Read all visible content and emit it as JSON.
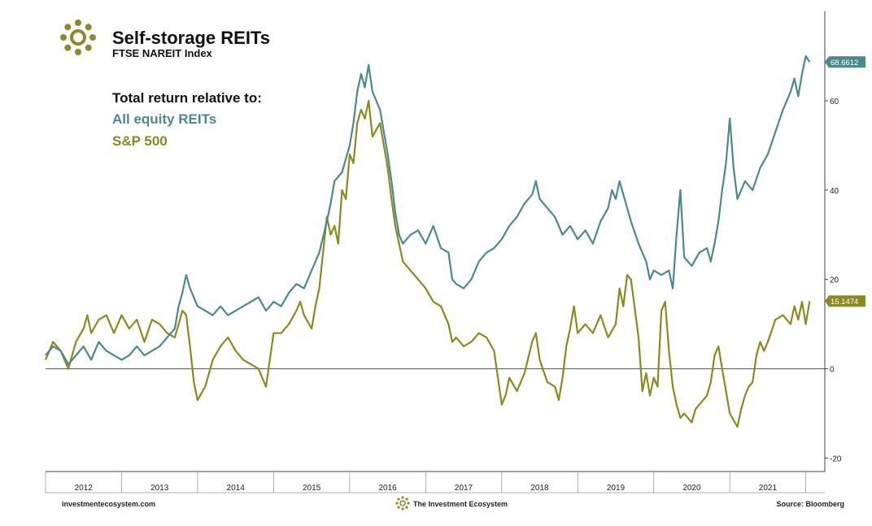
{
  "header": {
    "title": "Self-storage REITs",
    "subtitle": "FTSE NAREIT Index"
  },
  "legend": {
    "heading": "Total return relative to:",
    "items": [
      {
        "label": "All equity REITs",
        "color": "#4a8a8c"
      },
      {
        "label": "S&P 500",
        "color": "#8a8a1e"
      }
    ]
  },
  "footer": {
    "left": "investmentecosystem.com",
    "center": "The Investment Ecosystem",
    "right": "Source: Bloomberg"
  },
  "chart_data": {
    "type": "line",
    "x_tick_labels": [
      "2012",
      "2013",
      "2014",
      "2015",
      "2016",
      "2017",
      "2018",
      "2019",
      "2020",
      "2021"
    ],
    "xlim": [
      2011.5,
      2021.75
    ],
    "ylim": [
      -23,
      80
    ],
    "y_ticks": [
      60,
      40,
      20,
      0,
      -20
    ],
    "y_tick_labels": [
      "60",
      "40",
      "20",
      "0",
      "-20"
    ],
    "grid": false,
    "axis_side": "right",
    "zero_line": true,
    "series": [
      {
        "name": "All equity REITs",
        "color": "#4a8a8c",
        "last_value_label": "68.6612",
        "points": [
          [
            2011.5,
            3
          ],
          [
            2011.6,
            5
          ],
          [
            2011.7,
            4
          ],
          [
            2011.8,
            1
          ],
          [
            2011.9,
            3
          ],
          [
            2012.0,
            5
          ],
          [
            2012.1,
            2
          ],
          [
            2012.2,
            6
          ],
          [
            2012.3,
            4
          ],
          [
            2012.4,
            3
          ],
          [
            2012.5,
            2
          ],
          [
            2012.6,
            3
          ],
          [
            2012.7,
            5
          ],
          [
            2012.8,
            3
          ],
          [
            2012.9,
            4
          ],
          [
            2013.0,
            5
          ],
          [
            2013.1,
            7
          ],
          [
            2013.2,
            9
          ],
          [
            2013.25,
            14
          ],
          [
            2013.3,
            17
          ],
          [
            2013.35,
            21
          ],
          [
            2013.4,
            18
          ],
          [
            2013.5,
            14
          ],
          [
            2013.6,
            13
          ],
          [
            2013.7,
            12
          ],
          [
            2013.8,
            14
          ],
          [
            2013.9,
            12
          ],
          [
            2014.0,
            13
          ],
          [
            2014.1,
            14
          ],
          [
            2014.2,
            15
          ],
          [
            2014.3,
            16
          ],
          [
            2014.4,
            13
          ],
          [
            2014.5,
            15
          ],
          [
            2014.6,
            14
          ],
          [
            2014.7,
            17
          ],
          [
            2014.8,
            19
          ],
          [
            2014.9,
            18
          ],
          [
            2015.0,
            22
          ],
          [
            2015.1,
            26
          ],
          [
            2015.2,
            33
          ],
          [
            2015.25,
            37
          ],
          [
            2015.3,
            42
          ],
          [
            2015.4,
            44
          ],
          [
            2015.5,
            50
          ],
          [
            2015.55,
            55
          ],
          [
            2015.6,
            62
          ],
          [
            2015.65,
            66
          ],
          [
            2015.7,
            63
          ],
          [
            2015.75,
            68
          ],
          [
            2015.8,
            62
          ],
          [
            2015.9,
            58
          ],
          [
            2016.0,
            48
          ],
          [
            2016.05,
            42
          ],
          [
            2016.1,
            35
          ],
          [
            2016.15,
            30
          ],
          [
            2016.2,
            28
          ],
          [
            2016.3,
            30
          ],
          [
            2016.4,
            31
          ],
          [
            2016.5,
            28
          ],
          [
            2016.6,
            32
          ],
          [
            2016.7,
            27
          ],
          [
            2016.8,
            26
          ],
          [
            2016.85,
            20
          ],
          [
            2016.9,
            19
          ],
          [
            2017.0,
            18
          ],
          [
            2017.1,
            20
          ],
          [
            2017.2,
            24
          ],
          [
            2017.3,
            26
          ],
          [
            2017.4,
            27
          ],
          [
            2017.5,
            29
          ],
          [
            2017.6,
            32
          ],
          [
            2017.7,
            34
          ],
          [
            2017.8,
            37
          ],
          [
            2017.9,
            39
          ],
          [
            2017.95,
            42
          ],
          [
            2018.0,
            38
          ],
          [
            2018.1,
            36
          ],
          [
            2018.2,
            34
          ],
          [
            2018.3,
            30
          ],
          [
            2018.4,
            32
          ],
          [
            2018.5,
            29
          ],
          [
            2018.6,
            31
          ],
          [
            2018.7,
            28
          ],
          [
            2018.8,
            33
          ],
          [
            2018.9,
            36
          ],
          [
            2018.95,
            40
          ],
          [
            2019.0,
            38
          ],
          [
            2019.05,
            42
          ],
          [
            2019.1,
            39
          ],
          [
            2019.2,
            33
          ],
          [
            2019.3,
            28
          ],
          [
            2019.4,
            24
          ],
          [
            2019.45,
            20
          ],
          [
            2019.5,
            22
          ],
          [
            2019.6,
            21
          ],
          [
            2019.7,
            22
          ],
          [
            2019.75,
            18
          ],
          [
            2019.8,
            30
          ],
          [
            2019.85,
            40
          ],
          [
            2019.9,
            25
          ],
          [
            2020.0,
            23
          ],
          [
            2020.1,
            26
          ],
          [
            2020.2,
            27
          ],
          [
            2020.25,
            24
          ],
          [
            2020.3,
            28
          ],
          [
            2020.35,
            33
          ],
          [
            2020.4,
            40
          ],
          [
            2020.45,
            46
          ],
          [
            2020.5,
            56
          ],
          [
            2020.55,
            45
          ],
          [
            2020.6,
            38
          ],
          [
            2020.7,
            42
          ],
          [
            2020.8,
            40
          ],
          [
            2020.9,
            45
          ],
          [
            2021.0,
            48
          ],
          [
            2021.1,
            53
          ],
          [
            2021.2,
            58
          ],
          [
            2021.3,
            62
          ],
          [
            2021.35,
            65
          ],
          [
            2021.4,
            61
          ],
          [
            2021.45,
            66
          ],
          [
            2021.5,
            70
          ],
          [
            2021.55,
            68.6612
          ]
        ]
      },
      {
        "name": "S&P 500",
        "color": "#8a8a1e",
        "last_value_label": "15.1474",
        "points": [
          [
            2011.5,
            2
          ],
          [
            2011.6,
            6
          ],
          [
            2011.7,
            4
          ],
          [
            2011.8,
            0
          ],
          [
            2011.9,
            6
          ],
          [
            2012.0,
            9
          ],
          [
            2012.05,
            12
          ],
          [
            2012.1,
            8
          ],
          [
            2012.2,
            11
          ],
          [
            2012.3,
            12
          ],
          [
            2012.4,
            8
          ],
          [
            2012.5,
            12
          ],
          [
            2012.6,
            9
          ],
          [
            2012.7,
            11
          ],
          [
            2012.8,
            6
          ],
          [
            2012.9,
            11
          ],
          [
            2013.0,
            10
          ],
          [
            2013.1,
            8
          ],
          [
            2013.2,
            7
          ],
          [
            2013.25,
            10
          ],
          [
            2013.3,
            13
          ],
          [
            2013.35,
            12
          ],
          [
            2013.4,
            5
          ],
          [
            2013.45,
            -3
          ],
          [
            2013.5,
            -7
          ],
          [
            2013.6,
            -4
          ],
          [
            2013.7,
            2
          ],
          [
            2013.8,
            5
          ],
          [
            2013.9,
            7
          ],
          [
            2014.0,
            4
          ],
          [
            2014.1,
            2
          ],
          [
            2014.2,
            1
          ],
          [
            2014.3,
            0
          ],
          [
            2014.4,
            -4
          ],
          [
            2014.5,
            8
          ],
          [
            2014.6,
            8
          ],
          [
            2014.7,
            10
          ],
          [
            2014.8,
            13
          ],
          [
            2014.85,
            15
          ],
          [
            2014.9,
            12
          ],
          [
            2015.0,
            9
          ],
          [
            2015.05,
            14
          ],
          [
            2015.1,
            18
          ],
          [
            2015.2,
            34
          ],
          [
            2015.25,
            30
          ],
          [
            2015.3,
            32
          ],
          [
            2015.35,
            28
          ],
          [
            2015.4,
            40
          ],
          [
            2015.45,
            38
          ],
          [
            2015.5,
            48
          ],
          [
            2015.55,
            46
          ],
          [
            2015.6,
            55
          ],
          [
            2015.65,
            58
          ],
          [
            2015.7,
            56
          ],
          [
            2015.75,
            60
          ],
          [
            2015.8,
            52
          ],
          [
            2015.9,
            55
          ],
          [
            2016.0,
            45
          ],
          [
            2016.05,
            38
          ],
          [
            2016.1,
            32
          ],
          [
            2016.15,
            28
          ],
          [
            2016.2,
            24
          ],
          [
            2016.3,
            22
          ],
          [
            2016.4,
            20
          ],
          [
            2016.5,
            18
          ],
          [
            2016.6,
            15
          ],
          [
            2016.7,
            14
          ],
          [
            2016.8,
            10
          ],
          [
            2016.85,
            6
          ],
          [
            2016.9,
            7
          ],
          [
            2017.0,
            5
          ],
          [
            2017.1,
            6
          ],
          [
            2017.2,
            8
          ],
          [
            2017.3,
            7
          ],
          [
            2017.4,
            4
          ],
          [
            2017.45,
            -2
          ],
          [
            2017.5,
            -8
          ],
          [
            2017.55,
            -6
          ],
          [
            2017.6,
            -2
          ],
          [
            2017.7,
            -5
          ],
          [
            2017.8,
            -1
          ],
          [
            2017.9,
            6
          ],
          [
            2017.95,
            8
          ],
          [
            2018.0,
            2
          ],
          [
            2018.1,
            -3
          ],
          [
            2018.2,
            -4
          ],
          [
            2018.25,
            -7
          ],
          [
            2018.3,
            -2
          ],
          [
            2018.35,
            5
          ],
          [
            2018.4,
            9
          ],
          [
            2018.45,
            14
          ],
          [
            2018.5,
            8
          ],
          [
            2018.6,
            10
          ],
          [
            2018.7,
            8
          ],
          [
            2018.8,
            12
          ],
          [
            2018.9,
            7
          ],
          [
            2019.0,
            10
          ],
          [
            2019.05,
            18
          ],
          [
            2019.1,
            14
          ],
          [
            2019.15,
            21
          ],
          [
            2019.2,
            20
          ],
          [
            2019.3,
            7
          ],
          [
            2019.35,
            -5
          ],
          [
            2019.4,
            -1
          ],
          [
            2019.45,
            -6
          ],
          [
            2019.5,
            -2
          ],
          [
            2019.55,
            -4
          ],
          [
            2019.6,
            13
          ],
          [
            2019.65,
            15
          ],
          [
            2019.7,
            4
          ],
          [
            2019.75,
            -4
          ],
          [
            2019.8,
            -8
          ],
          [
            2019.85,
            -11
          ],
          [
            2019.9,
            -10
          ],
          [
            2020.0,
            -12
          ],
          [
            2020.05,
            -9
          ],
          [
            2020.1,
            -8
          ],
          [
            2020.2,
            -6
          ],
          [
            2020.25,
            -3
          ],
          [
            2020.3,
            3
          ],
          [
            2020.35,
            5
          ],
          [
            2020.4,
            0
          ],
          [
            2020.45,
            -5
          ],
          [
            2020.5,
            -10
          ],
          [
            2020.6,
            -13
          ],
          [
            2020.65,
            -9
          ],
          [
            2020.7,
            -6
          ],
          [
            2020.75,
            -4
          ],
          [
            2020.8,
            -3
          ],
          [
            2020.85,
            3
          ],
          [
            2020.9,
            6
          ],
          [
            2020.95,
            4
          ],
          [
            2021.0,
            6
          ],
          [
            2021.1,
            11
          ],
          [
            2021.2,
            12
          ],
          [
            2021.3,
            10
          ],
          [
            2021.35,
            14
          ],
          [
            2021.4,
            11
          ],
          [
            2021.45,
            15
          ],
          [
            2021.5,
            10
          ],
          [
            2021.55,
            15.1474
          ]
        ]
      }
    ]
  }
}
